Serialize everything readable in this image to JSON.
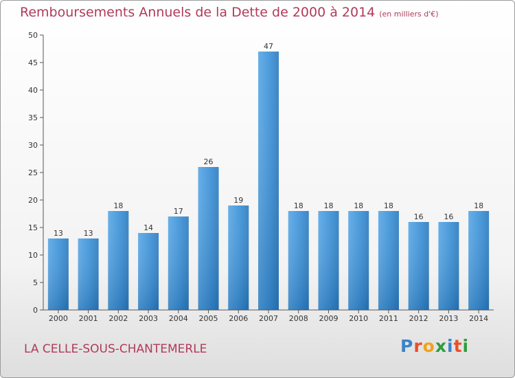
{
  "header": {
    "title": "Remboursements Annuels de la Dette de 2000 à 2014",
    "unit": "(en milliers d'€)"
  },
  "footer": {
    "commune": "LA CELLE-SOUS-CHANTEMERLE",
    "logo_letters": [
      "P",
      "r",
      "o",
      "x",
      "i",
      "t",
      "i"
    ],
    "logo_colors": [
      "#3a84c9",
      "#e8502a",
      "#f2a21b",
      "#2e9c3e",
      "#3a84c9",
      "#e8502a",
      "#2e9c3e"
    ]
  },
  "chart_data": {
    "type": "bar",
    "categories": [
      "2000",
      "2001",
      "2002",
      "2003",
      "2004",
      "2005",
      "2006",
      "2007",
      "2008",
      "2009",
      "2010",
      "2011",
      "2012",
      "2013",
      "2014"
    ],
    "values": [
      13,
      13,
      18,
      14,
      17,
      26,
      19,
      47,
      18,
      18,
      18,
      18,
      16,
      16,
      18
    ],
    "title": "Remboursements Annuels de la Dette de 2000 à 2014",
    "ylim": [
      0,
      50
    ],
    "yticks": [
      0,
      5,
      10,
      15,
      20,
      25,
      30,
      35,
      40,
      45,
      50
    ],
    "grid": false,
    "bar_color": "#3d92d8"
  }
}
